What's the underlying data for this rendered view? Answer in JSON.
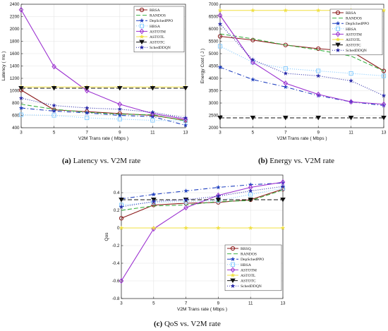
{
  "chart_data": [
    {
      "id": "a",
      "type": "line",
      "caption_letter": "(a)",
      "caption_text": " Latency vs. V2M rate",
      "xlabel": "V2M Trans rate ( Mbps )",
      "ylabel": "Latency ( ms )",
      "x": [
        3,
        5,
        7,
        9,
        11,
        13
      ],
      "xlim": [
        3,
        13
      ],
      "xticks": [
        3,
        5,
        7,
        9,
        11,
        13
      ],
      "ylim": [
        400,
        2400
      ],
      "yticks": [
        400,
        600,
        800,
        1000,
        1200,
        1400,
        1600,
        1800,
        2000,
        2200,
        2400
      ],
      "grid": true,
      "legend_position": "top-right",
      "series": [
        {
          "name": "RRSA",
          "color": "#8b1a1a",
          "dash": "",
          "marker": "circle",
          "values": [
            1010,
            690,
            660,
            630,
            600,
            520
          ]
        },
        {
          "name": "RANDOS",
          "color": "#3cb043",
          "dash": "6,3",
          "marker": "none",
          "values": [
            780,
            700,
            650,
            620,
            610,
            510
          ]
        },
        {
          "name": "DepSchedPPO",
          "color": "#1f3fbf",
          "dash": "6,3,1,3",
          "marker": "star",
          "values": [
            720,
            670,
            640,
            600,
            580,
            440
          ]
        },
        {
          "name": "HBSA",
          "color": "#7ec8ff",
          "dash": "1,2",
          "marker": "square",
          "values": [
            610,
            600,
            560,
            540,
            520,
            510
          ]
        },
        {
          "name": "ASTOTM",
          "color": "#9b30d0",
          "dash": "",
          "marker": "diamond",
          "values": [
            2310,
            1390,
            1000,
            780,
            630,
            540
          ]
        },
        {
          "name": "ASTOTL",
          "color": "#f0e040",
          "dash": "",
          "marker": "star",
          "values": [
            1060,
            1060,
            1060,
            1060,
            1060,
            1060
          ]
        },
        {
          "name": "ASTOTC",
          "color": "#111111",
          "dash": "6,3",
          "marker": "triangle-down",
          "values": [
            1040,
            1040,
            1040,
            1040,
            1040,
            1040
          ]
        },
        {
          "name": "SchedDDQN",
          "color": "#2828a8",
          "dash": "1,2",
          "marker": "star",
          "values": [
            880,
            760,
            720,
            700,
            650,
            560
          ]
        }
      ]
    },
    {
      "id": "b",
      "type": "line",
      "caption_letter": "(b)",
      "caption_text": " Energy vs. V2M rate",
      "xlabel": "V2M Trans rate ( Mbps )",
      "ylabel": "Energy Cost ( J )",
      "x": [
        3,
        5,
        7,
        9,
        11,
        13
      ],
      "xlim": [
        3,
        13
      ],
      "xticks": [
        3,
        5,
        7,
        9,
        11,
        13
      ],
      "ylim": [
        2000,
        7000
      ],
      "yticks": [
        2000,
        2500,
        3000,
        3500,
        4000,
        4500,
        5000,
        5500,
        6000,
        6500,
        7000
      ],
      "grid": true,
      "legend_position": "top-right",
      "series": [
        {
          "name": "RRSA",
          "color": "#8b1a1a",
          "dash": "",
          "marker": "circle",
          "values": [
            5700,
            5550,
            5350,
            5200,
            5100,
            4300
          ]
        },
        {
          "name": "RANDOS",
          "color": "#3cb043",
          "dash": "6,3",
          "marker": "none",
          "values": [
            5800,
            5600,
            5350,
            5150,
            4900,
            4300
          ]
        },
        {
          "name": "DepSchedPPO",
          "color": "#1f3fbf",
          "dash": "6,3,1,3",
          "marker": "star",
          "values": [
            4450,
            3950,
            3650,
            3300,
            3050,
            2900
          ]
        },
        {
          "name": "HBSA",
          "color": "#7ec8ff",
          "dash": "1,2",
          "marker": "square",
          "values": [
            5300,
            4650,
            4400,
            4300,
            4200,
            4100
          ]
        },
        {
          "name": "ASTOTM",
          "color": "#9b30d0",
          "dash": "",
          "marker": "diamond",
          "values": [
            6550,
            4650,
            3800,
            3350,
            3050,
            2950
          ]
        },
        {
          "name": "ASTOTL",
          "color": "#f0e040",
          "dash": "",
          "marker": "star",
          "values": [
            6750,
            6750,
            6750,
            6750,
            6750,
            6750
          ]
        },
        {
          "name": "ASTOTC",
          "color": "#111111",
          "dash": "6,3",
          "marker": "triangle-down",
          "values": [
            2400,
            2400,
            2400,
            2400,
            2400,
            2400
          ]
        },
        {
          "name": "SchedDDQN",
          "color": "#2828a8",
          "dash": "1,2",
          "marker": "star",
          "values": [
            6200,
            4750,
            4200,
            4100,
            3900,
            3300
          ]
        }
      ]
    },
    {
      "id": "c",
      "type": "line",
      "caption_letter": "(c)",
      "caption_text": " QoS vs. V2M rate",
      "xlabel": "V2M Trans rate ( Mbps )",
      "ylabel": "Qos",
      "x": [
        3,
        5,
        7,
        9,
        11,
        13
      ],
      "xlim": [
        3,
        13
      ],
      "xticks": [
        3,
        5,
        7,
        9,
        11,
        13
      ],
      "ylim": [
        -0.8,
        0.6
      ],
      "yticks": [
        -0.8,
        -0.6,
        -0.4,
        -0.2,
        0,
        0.2,
        0.4
      ],
      "grid": true,
      "legend_position": "lower-right",
      "series": [
        {
          "name": "RRSQ",
          "color": "#8b1a1a",
          "dash": "",
          "marker": "circle",
          "values": [
            0.11,
            0.26,
            0.28,
            0.29,
            0.32,
            0.44
          ]
        },
        {
          "name": "RANDOS",
          "color": "#3cb043",
          "dash": "6,3",
          "marker": "none",
          "values": [
            0.2,
            0.25,
            0.26,
            0.3,
            0.31,
            0.43
          ]
        },
        {
          "name": "DepSchedPPO",
          "color": "#1f3fbf",
          "dash": "6,3,1,3",
          "marker": "star",
          "values": [
            0.33,
            0.38,
            0.42,
            0.46,
            0.49,
            0.51
          ]
        },
        {
          "name": "HBSA",
          "color": "#7ec8ff",
          "dash": "1,2",
          "marker": "square",
          "values": [
            0.26,
            0.29,
            0.3,
            0.31,
            0.38,
            0.45
          ]
        },
        {
          "name": "ASTOTM",
          "color": "#9b30d0",
          "dash": "",
          "marker": "diamond",
          "values": [
            -0.6,
            -0.01,
            0.23,
            0.37,
            0.46,
            0.52
          ]
        },
        {
          "name": "ASTOTL",
          "color": "#f0e040",
          "dash": "",
          "marker": "star",
          "values": [
            0,
            0,
            0,
            0,
            0,
            0
          ]
        },
        {
          "name": "ASTOTC",
          "color": "#111111",
          "dash": "6,3",
          "marker": "triangle-down",
          "values": [
            0.32,
            0.32,
            0.32,
            0.32,
            0.32,
            0.32
          ]
        },
        {
          "name": "SchedDDQN",
          "color": "#2828a8",
          "dash": "1,2",
          "marker": "star",
          "values": [
            0.24,
            0.3,
            0.32,
            0.36,
            0.42,
            0.47
          ]
        }
      ]
    }
  ]
}
